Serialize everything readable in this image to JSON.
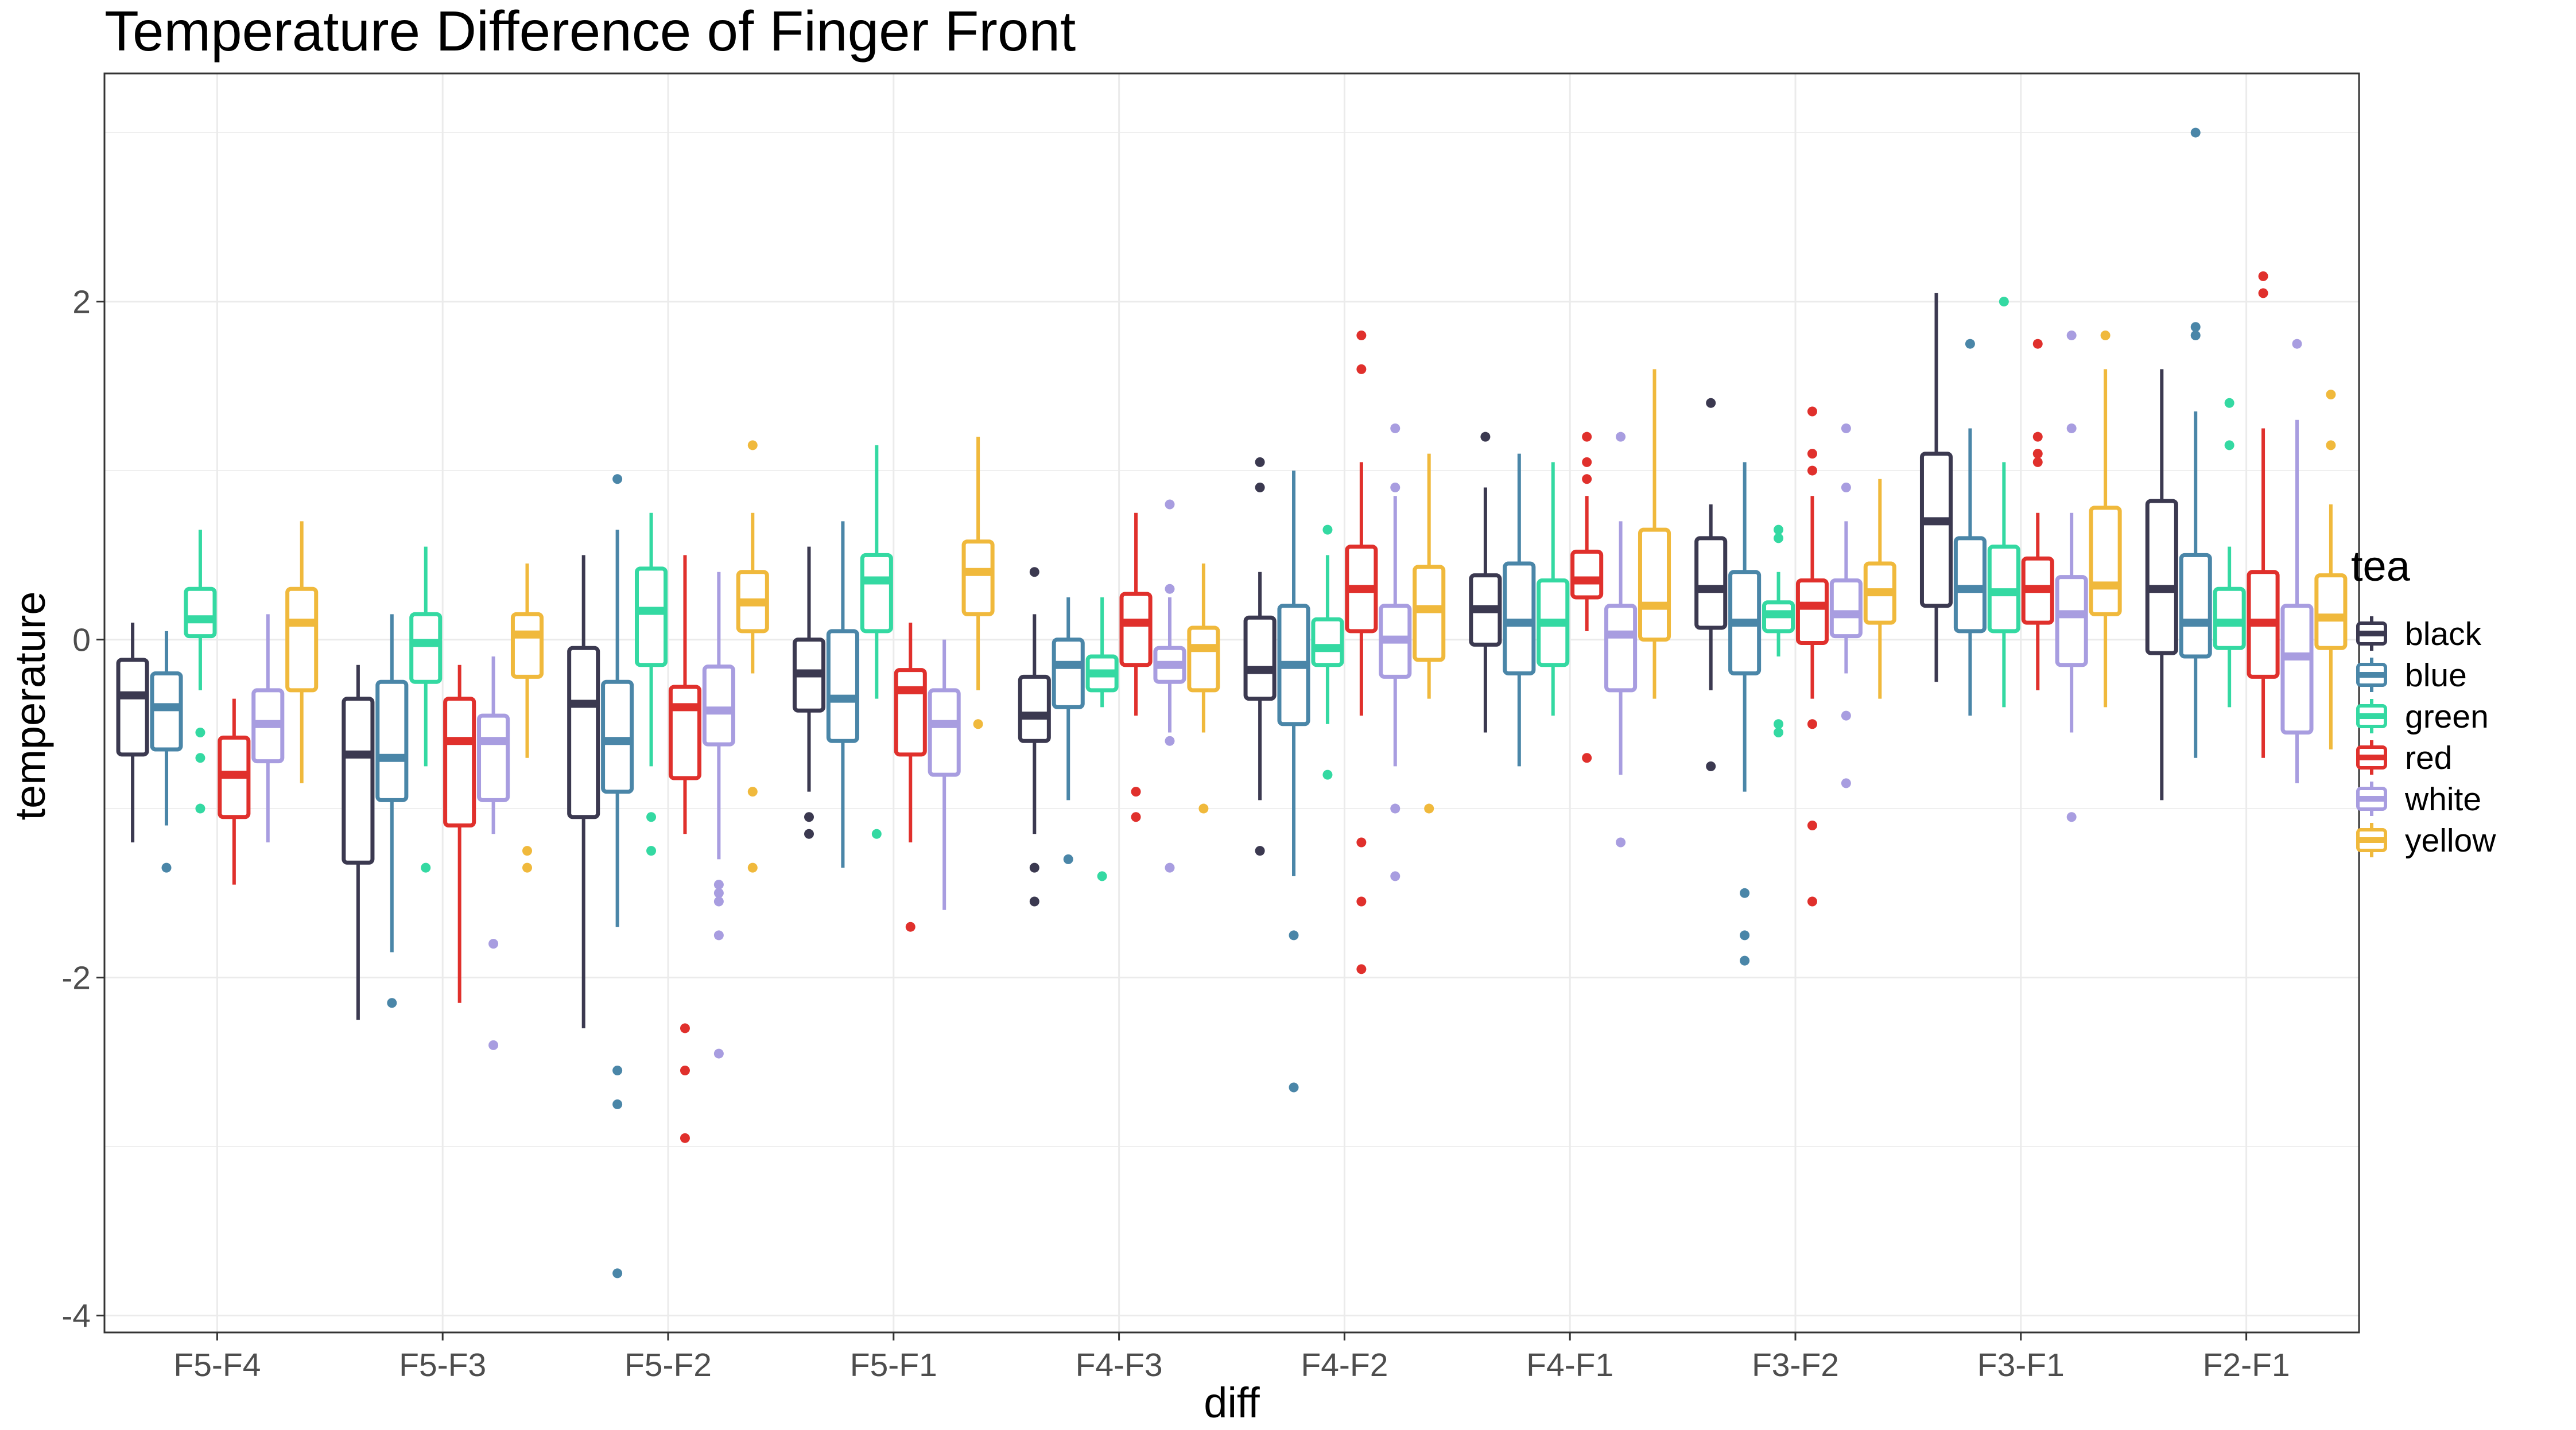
{
  "chart_data": {
    "type": "boxplot",
    "title": "Temperature Difference of Finger Front",
    "xlabel": "diff",
    "ylabel": "temperature",
    "categories": [
      "F5-F4",
      "F5-F3",
      "F5-F2",
      "F5-F1",
      "F4-F3",
      "F4-F2",
      "F4-F1",
      "F3-F2",
      "F3-F1",
      "F2-F1"
    ],
    "y_ticks": [
      {
        "value": 2,
        "label": "2"
      },
      {
        "value": 0,
        "label": "0"
      },
      {
        "value": -2,
        "label": "-2"
      },
      {
        "value": -4,
        "label": "-4"
      }
    ],
    "ylim": [
      -4.1,
      3.35
    ],
    "grid": true,
    "legend": {
      "title": "tea",
      "position": "right"
    },
    "series": [
      {
        "name": "black",
        "color": "#3b3950",
        "boxes": [
          {
            "lw": -1.2,
            "q1": -0.68,
            "med": -0.33,
            "q3": -0.12,
            "uw": 0.1,
            "outliers": []
          },
          {
            "lw": -2.25,
            "q1": -1.32,
            "med": -0.68,
            "q3": -0.35,
            "uw": -0.15,
            "outliers": []
          },
          {
            "lw": -2.3,
            "q1": -1.05,
            "med": -0.38,
            "q3": -0.05,
            "uw": 0.5,
            "outliers": []
          },
          {
            "lw": -0.9,
            "q1": -0.42,
            "med": -0.2,
            "q3": 0.0,
            "uw": 0.55,
            "outliers": [
              -1.05,
              -1.15
            ]
          },
          {
            "lw": -1.15,
            "q1": -0.6,
            "med": -0.45,
            "q3": -0.22,
            "uw": 0.15,
            "outliers": [
              0.4,
              -1.35,
              -1.55
            ]
          },
          {
            "lw": -0.95,
            "q1": -0.35,
            "med": -0.18,
            "q3": 0.13,
            "uw": 0.4,
            "outliers": [
              1.05,
              0.9,
              -1.25
            ]
          },
          {
            "lw": -0.55,
            "q1": -0.03,
            "med": 0.18,
            "q3": 0.38,
            "uw": 0.9,
            "outliers": [
              1.2
            ]
          },
          {
            "lw": -0.3,
            "q1": 0.07,
            "med": 0.3,
            "q3": 0.6,
            "uw": 0.8,
            "outliers": [
              1.4,
              -0.75
            ]
          },
          {
            "lw": -0.25,
            "q1": 0.2,
            "med": 0.7,
            "q3": 1.1,
            "uw": 2.05,
            "outliers": []
          },
          {
            "lw": -0.95,
            "q1": -0.08,
            "med": 0.3,
            "q3": 0.82,
            "uw": 1.6,
            "outliers": []
          }
        ]
      },
      {
        "name": "blue",
        "color": "#4a86a8",
        "boxes": [
          {
            "lw": -1.1,
            "q1": -0.65,
            "med": -0.4,
            "q3": -0.2,
            "uw": 0.05,
            "outliers": [
              -1.35
            ]
          },
          {
            "lw": -1.85,
            "q1": -0.95,
            "med": -0.7,
            "q3": -0.25,
            "uw": 0.15,
            "outliers": [
              -2.15
            ]
          },
          {
            "lw": -1.7,
            "q1": -0.9,
            "med": -0.6,
            "q3": -0.25,
            "uw": 0.65,
            "outliers": [
              0.95,
              -2.55,
              -2.75,
              -3.75
            ]
          },
          {
            "lw": -1.35,
            "q1": -0.6,
            "med": -0.35,
            "q3": 0.05,
            "uw": 0.7,
            "outliers": []
          },
          {
            "lw": -0.95,
            "q1": -0.4,
            "med": -0.15,
            "q3": 0.0,
            "uw": 0.25,
            "outliers": [
              -1.3
            ]
          },
          {
            "lw": -1.4,
            "q1": -0.5,
            "med": -0.15,
            "q3": 0.2,
            "uw": 1.0,
            "outliers": [
              -1.75,
              -2.65
            ]
          },
          {
            "lw": -0.75,
            "q1": -0.2,
            "med": 0.1,
            "q3": 0.45,
            "uw": 1.1,
            "outliers": []
          },
          {
            "lw": -0.9,
            "q1": -0.2,
            "med": 0.1,
            "q3": 0.4,
            "uw": 1.05,
            "outliers": [
              -1.5,
              -1.75,
              -1.9
            ]
          },
          {
            "lw": -0.45,
            "q1": 0.05,
            "med": 0.3,
            "q3": 0.6,
            "uw": 1.25,
            "outliers": [
              1.75
            ]
          },
          {
            "lw": -0.7,
            "q1": -0.1,
            "med": 0.1,
            "q3": 0.5,
            "uw": 1.35,
            "outliers": [
              3.0,
              1.85,
              1.8
            ]
          }
        ]
      },
      {
        "name": "green",
        "color": "#34d9a2",
        "boxes": [
          {
            "lw": -0.3,
            "q1": 0.02,
            "med": 0.12,
            "q3": 0.3,
            "uw": 0.65,
            "outliers": [
              -0.55,
              -0.7,
              -1.0
            ]
          },
          {
            "lw": -0.75,
            "q1": -0.25,
            "med": -0.02,
            "q3": 0.15,
            "uw": 0.55,
            "outliers": [
              -1.35
            ]
          },
          {
            "lw": -0.75,
            "q1": -0.15,
            "med": 0.17,
            "q3": 0.42,
            "uw": 0.75,
            "outliers": [
              -1.05,
              -1.25
            ]
          },
          {
            "lw": -0.35,
            "q1": 0.05,
            "med": 0.35,
            "q3": 0.5,
            "uw": 1.15,
            "outliers": [
              -1.15
            ]
          },
          {
            "lw": -0.4,
            "q1": -0.3,
            "med": -0.2,
            "q3": -0.1,
            "uw": 0.25,
            "outliers": [
              -1.4
            ]
          },
          {
            "lw": -0.5,
            "q1": -0.15,
            "med": -0.05,
            "q3": 0.12,
            "uw": 0.5,
            "outliers": [
              0.65,
              -0.8
            ]
          },
          {
            "lw": -0.45,
            "q1": -0.15,
            "med": 0.1,
            "q3": 0.35,
            "uw": 1.05,
            "outliers": []
          },
          {
            "lw": -0.1,
            "q1": 0.05,
            "med": 0.15,
            "q3": 0.22,
            "uw": 0.4,
            "outliers": [
              0.65,
              0.6,
              -0.5,
              -0.55
            ]
          },
          {
            "lw": -0.4,
            "q1": 0.05,
            "med": 0.28,
            "q3": 0.55,
            "uw": 1.05,
            "outliers": [
              2.0
            ]
          },
          {
            "lw": -0.4,
            "q1": -0.05,
            "med": 0.1,
            "q3": 0.3,
            "uw": 0.55,
            "outliers": [
              1.4,
              1.15
            ]
          }
        ]
      },
      {
        "name": "red",
        "color": "#e0302c",
        "boxes": [
          {
            "lw": -1.45,
            "q1": -1.05,
            "med": -0.8,
            "q3": -0.58,
            "uw": -0.35,
            "outliers": []
          },
          {
            "lw": -2.15,
            "q1": -1.1,
            "med": -0.6,
            "q3": -0.35,
            "uw": -0.15,
            "outliers": []
          },
          {
            "lw": -1.15,
            "q1": -0.82,
            "med": -0.4,
            "q3": -0.28,
            "uw": 0.5,
            "outliers": [
              -2.3,
              -2.55,
              -2.95
            ]
          },
          {
            "lw": -1.2,
            "q1": -0.68,
            "med": -0.3,
            "q3": -0.18,
            "uw": 0.1,
            "outliers": [
              -1.7
            ]
          },
          {
            "lw": -0.45,
            "q1": -0.15,
            "med": 0.1,
            "q3": 0.27,
            "uw": 0.75,
            "outliers": [
              -0.9,
              -1.05
            ]
          },
          {
            "lw": -0.45,
            "q1": 0.05,
            "med": 0.3,
            "q3": 0.55,
            "uw": 1.05,
            "outliers": [
              1.8,
              1.6,
              -1.2,
              -1.55,
              -1.95
            ]
          },
          {
            "lw": 0.05,
            "q1": 0.25,
            "med": 0.35,
            "q3": 0.52,
            "uw": 0.85,
            "outliers": [
              1.2,
              1.05,
              0.95,
              -0.7
            ]
          },
          {
            "lw": -0.35,
            "q1": -0.02,
            "med": 0.2,
            "q3": 0.35,
            "uw": 0.85,
            "outliers": [
              1.35,
              1.1,
              1.0,
              -0.5,
              -1.1,
              -1.55
            ]
          },
          {
            "lw": -0.3,
            "q1": 0.1,
            "med": 0.3,
            "q3": 0.48,
            "uw": 0.75,
            "outliers": [
              1.75,
              1.2,
              1.1,
              1.05
            ]
          },
          {
            "lw": -0.7,
            "q1": -0.22,
            "med": 0.1,
            "q3": 0.4,
            "uw": 1.25,
            "outliers": [
              2.15,
              2.05
            ]
          }
        ]
      },
      {
        "name": "white",
        "color": "#a89de0",
        "boxes": [
          {
            "lw": -1.2,
            "q1": -0.72,
            "med": -0.5,
            "q3": -0.3,
            "uw": 0.15,
            "outliers": []
          },
          {
            "lw": -1.15,
            "q1": -0.95,
            "med": -0.6,
            "q3": -0.45,
            "uw": -0.1,
            "outliers": [
              -1.8,
              -2.4
            ]
          },
          {
            "lw": -1.3,
            "q1": -0.62,
            "med": -0.42,
            "q3": -0.16,
            "uw": 0.4,
            "outliers": [
              -1.45,
              -1.5,
              -1.55,
              -1.75,
              -2.45
            ]
          },
          {
            "lw": -1.6,
            "q1": -0.8,
            "med": -0.5,
            "q3": -0.3,
            "uw": 0.0,
            "outliers": []
          },
          {
            "lw": -0.55,
            "q1": -0.25,
            "med": -0.15,
            "q3": -0.05,
            "uw": 0.25,
            "outliers": [
              0.8,
              0.3,
              -0.6,
              -1.35
            ]
          },
          {
            "lw": -0.75,
            "q1": -0.22,
            "med": 0.0,
            "q3": 0.2,
            "uw": 0.85,
            "outliers": [
              1.25,
              0.9,
              -1.0,
              -1.4
            ]
          },
          {
            "lw": -0.8,
            "q1": -0.3,
            "med": 0.03,
            "q3": 0.2,
            "uw": 0.7,
            "outliers": [
              1.2,
              -1.2
            ]
          },
          {
            "lw": -0.2,
            "q1": 0.02,
            "med": 0.15,
            "q3": 0.35,
            "uw": 0.7,
            "outliers": [
              1.25,
              0.9,
              -0.45,
              -0.85
            ]
          },
          {
            "lw": -0.55,
            "q1": -0.15,
            "med": 0.15,
            "q3": 0.37,
            "uw": 0.75,
            "outliers": [
              1.8,
              1.25,
              -1.05
            ]
          },
          {
            "lw": -0.85,
            "q1": -0.55,
            "med": -0.1,
            "q3": 0.2,
            "uw": 1.3,
            "outliers": [
              1.75
            ]
          }
        ]
      },
      {
        "name": "yellow",
        "color": "#f0b93c",
        "boxes": [
          {
            "lw": -0.85,
            "q1": -0.3,
            "med": 0.1,
            "q3": 0.3,
            "uw": 0.7,
            "outliers": []
          },
          {
            "lw": -0.7,
            "q1": -0.22,
            "med": 0.03,
            "q3": 0.15,
            "uw": 0.45,
            "outliers": [
              -1.25,
              -1.35
            ]
          },
          {
            "lw": -0.2,
            "q1": 0.05,
            "med": 0.22,
            "q3": 0.4,
            "uw": 0.75,
            "outliers": [
              1.15,
              -0.9,
              -1.35
            ]
          },
          {
            "lw": -0.3,
            "q1": 0.15,
            "med": 0.4,
            "q3": 0.58,
            "uw": 1.2,
            "outliers": [
              -0.5
            ]
          },
          {
            "lw": -0.55,
            "q1": -0.3,
            "med": -0.05,
            "q3": 0.07,
            "uw": 0.45,
            "outliers": [
              -1.0
            ]
          },
          {
            "lw": -0.35,
            "q1": -0.12,
            "med": 0.18,
            "q3": 0.43,
            "uw": 1.1,
            "outliers": [
              -1.0
            ]
          },
          {
            "lw": -0.35,
            "q1": 0.0,
            "med": 0.2,
            "q3": 0.65,
            "uw": 1.6,
            "outliers": []
          },
          {
            "lw": -0.35,
            "q1": 0.1,
            "med": 0.28,
            "q3": 0.45,
            "uw": 0.95,
            "outliers": []
          },
          {
            "lw": -0.4,
            "q1": 0.15,
            "med": 0.32,
            "q3": 0.78,
            "uw": 1.6,
            "outliers": [
              1.8
            ]
          },
          {
            "lw": -0.65,
            "q1": -0.05,
            "med": 0.13,
            "q3": 0.38,
            "uw": 0.8,
            "outliers": [
              1.45,
              1.15
            ]
          }
        ]
      }
    ]
  }
}
